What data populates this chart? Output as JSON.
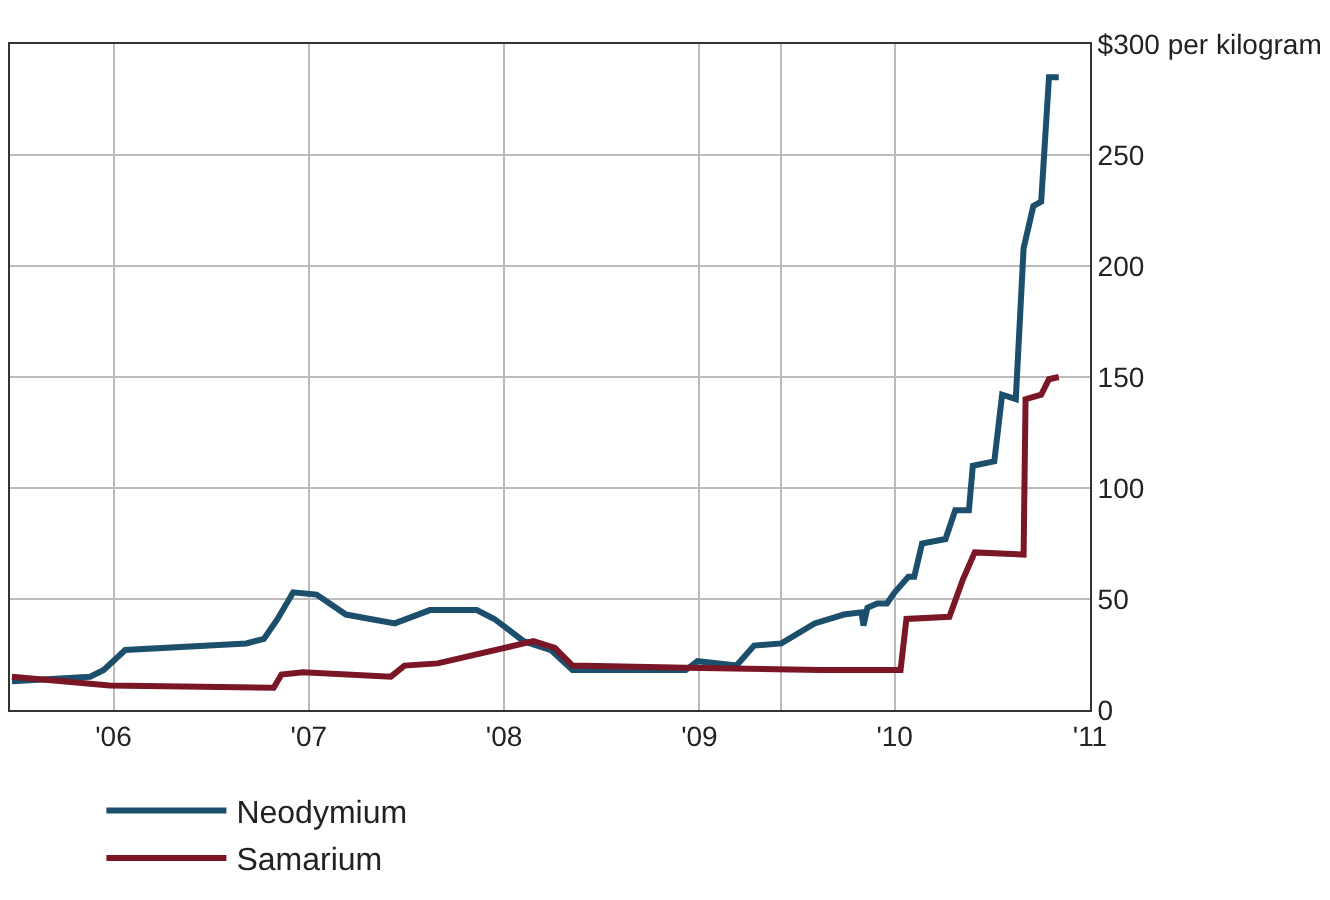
{
  "chart_data": {
    "type": "line",
    "xlim": [
      2005.47,
      2011.0
    ],
    "xticks": [
      {
        "value": 2006,
        "label": "'06"
      },
      {
        "value": 2007,
        "label": "'07"
      },
      {
        "value": 2008,
        "label": "'08"
      },
      {
        "value": 2009,
        "label": "'09"
      },
      {
        "value": 2009.42,
        "label": null
      },
      {
        "value": 2010,
        "label": "'10"
      },
      {
        "value": 2011,
        "label": "'11"
      }
    ],
    "ylim": [
      0,
      300
    ],
    "yticks": [
      0,
      50,
      100,
      150,
      200,
      250,
      {
        "value": 300,
        "label": "$300 per kilogram"
      }
    ],
    "grid": true,
    "legend": "bottom",
    "marker": "none",
    "line_style": "solid",
    "series": [
      {
        "name": "Neodymium",
        "color": "#1c4f6b",
        "x": [
          2005.48,
          2005.88,
          2005.95,
          2006.06,
          2006.68,
          2006.77,
          2006.84,
          2006.92,
          2007.04,
          2007.19,
          2007.44,
          2007.62,
          2007.86,
          2007.95,
          2008.1,
          2008.24,
          2008.35,
          2008.93,
          2008.99,
          2009.19,
          2009.28,
          2009.42,
          2009.59,
          2009.74,
          2009.83,
          2009.84,
          2009.86,
          2009.91,
          2009.96,
          2010.0,
          2010.07,
          2010.1,
          2010.14,
          2010.26,
          2010.31,
          2010.38,
          2010.4,
          2010.51,
          2010.55,
          2010.62,
          2010.66,
          2010.71,
          2010.75,
          2010.79,
          2010.84
        ],
        "values": [
          13,
          15,
          18,
          27,
          30,
          32,
          41,
          53,
          52,
          43,
          39,
          45,
          45,
          41,
          31,
          27,
          18,
          18,
          22,
          20,
          29,
          30,
          39,
          43,
          44,
          38,
          46,
          48,
          48,
          53,
          60,
          60,
          75,
          77,
          90,
          90,
          110,
          112,
          142,
          140,
          208,
          227,
          229,
          285,
          285
        ]
      },
      {
        "name": "Samarium",
        "color": "#7a1626",
        "x": [
          2005.48,
          2005.98,
          2006.82,
          2006.86,
          2006.97,
          2007.42,
          2007.49,
          2007.66,
          2008.15,
          2008.26,
          2008.35,
          2008.93,
          2009.62,
          2010.03,
          2010.06,
          2010.28,
          2010.35,
          2010.41,
          2010.66,
          2010.67,
          2010.75,
          2010.79,
          2010.84
        ],
        "values": [
          15,
          11,
          10,
          16,
          17,
          15,
          20,
          21,
          31,
          28,
          20,
          19,
          18,
          18,
          41,
          42,
          59,
          71,
          70,
          140,
          142,
          149,
          150
        ]
      }
    ]
  }
}
